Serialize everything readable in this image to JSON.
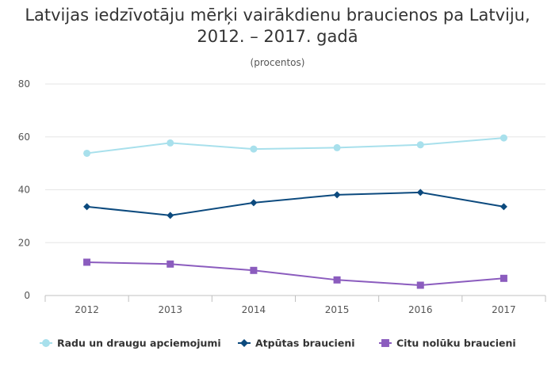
{
  "chart_data": {
    "type": "line",
    "title_line1": "Latvijas iedzīvotāju mērķi vairākdienu braucienos pa Latviju,",
    "title_line2": "2012. – 2017. gadā",
    "subtitle": "(procentos)",
    "categories": [
      "2012",
      "2013",
      "2014",
      "2015",
      "2016",
      "2017"
    ],
    "ylim": [
      0,
      80
    ],
    "yticks": [
      0,
      20,
      40,
      60,
      80
    ],
    "grid": true,
    "legend_position": "bottom",
    "series": [
      {
        "name": "Radu un draugu apciemojumi",
        "color": "#a8e0ec",
        "marker": "circle",
        "values": [
          53.8,
          57.7,
          55.4,
          55.9,
          57.0,
          59.6
        ]
      },
      {
        "name": "Atpūtas braucieni",
        "color": "#0c4a7e",
        "marker": "diamond",
        "values": [
          33.6,
          30.3,
          35.1,
          38.1,
          39.0,
          33.6
        ]
      },
      {
        "name": "Citu nolūku braucieni",
        "color": "#8b5cbe",
        "marker": "square",
        "values": [
          12.6,
          11.9,
          9.5,
          5.9,
          3.9,
          6.5
        ]
      }
    ]
  }
}
